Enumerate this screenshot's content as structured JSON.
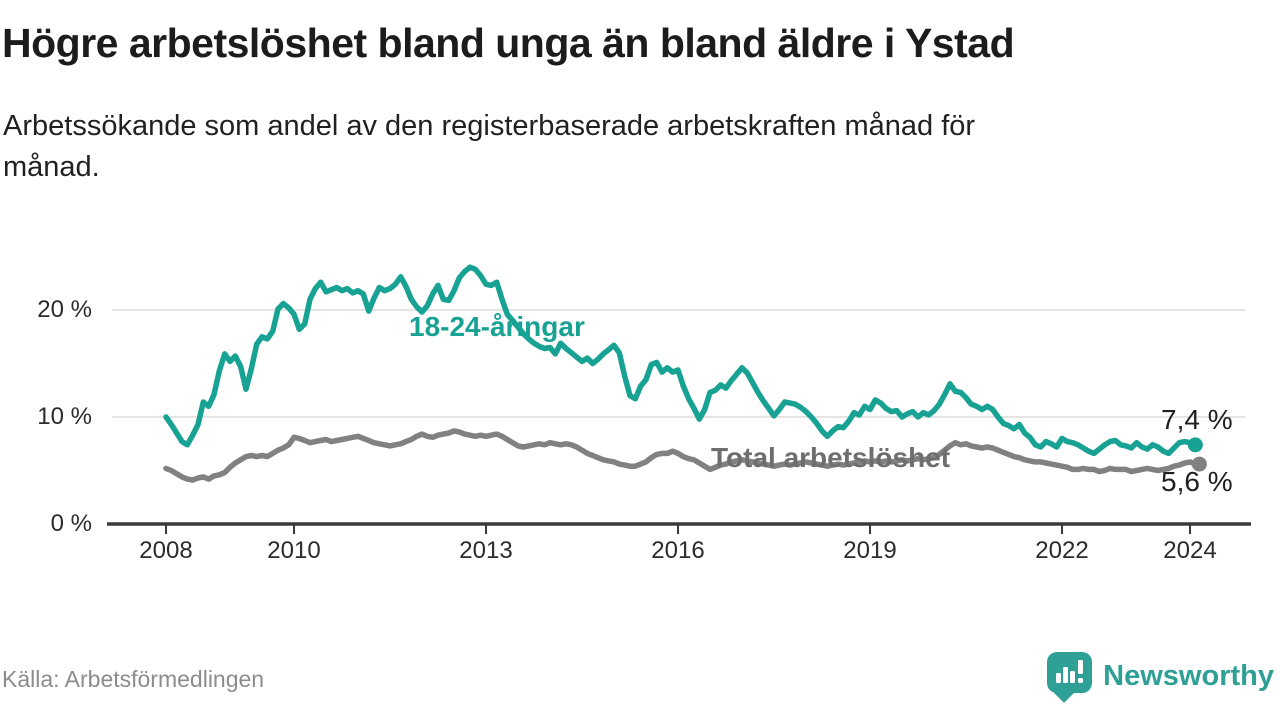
{
  "header": {
    "title": "Högre arbetslöshet bland unga än bland äldre i Ystad",
    "subtitle": "Arbetssökande som andel av den registerbaserade arbetskraften månad för\nmånad."
  },
  "footer": {
    "source": "Källa: Arbetsförmedlingen",
    "brand_name": "Newsworthy"
  },
  "colors": {
    "young_line": "#17a293",
    "total_line": "#818181",
    "total_label": "#6e6e6e",
    "grid": "#dcdcdc",
    "axis": "#3a3a3a",
    "text_dark": "#1f1f1f",
    "brand_teal": "#2fa096"
  },
  "chart_data": {
    "type": "line",
    "title": "Högre arbetslöshet bland unga än bland äldre i Ystad",
    "subtitle": "Arbetssökande som andel av den registerbaserade arbetskraften månad för månad.",
    "source": "Källa: Arbetsförmedlingen",
    "grid": "horizontal",
    "legend_position": "inline-labels",
    "x_axis": {
      "range": [
        2007.85,
        2024.6
      ],
      "ticks": [
        2008,
        2010,
        2013,
        2016,
        2019,
        2022,
        2024
      ],
      "tick_labels": [
        "2008",
        "2010",
        "2013",
        "2016",
        "2019",
        "2022",
        "2024"
      ]
    },
    "y_axis": {
      "unit": "%",
      "range": [
        0,
        25.5
      ],
      "ticks": [
        0,
        10,
        20
      ],
      "tick_labels": [
        "0 %",
        "10 %",
        "20 %"
      ]
    },
    "x_start_year": 2008.0,
    "x_step_months": 1,
    "series": [
      {
        "name": "18-24-åringar",
        "color": "#17a293",
        "end_value": 7.4,
        "end_label": "7,4 %",
        "values": [
          10.0,
          9.3,
          8.5,
          7.7,
          7.4,
          8.3,
          9.3,
          11.4,
          11.0,
          12.1,
          14.3,
          15.9,
          15.2,
          15.7,
          14.7,
          12.6,
          14.5,
          16.8,
          17.5,
          17.3,
          18.0,
          20.1,
          20.6,
          20.2,
          19.6,
          18.2,
          18.7,
          21.0,
          22.0,
          22.6,
          21.7,
          21.9,
          22.1,
          21.8,
          22.0,
          21.6,
          21.8,
          21.5,
          19.9,
          21.1,
          22.1,
          21.8,
          22.0,
          22.4,
          23.1,
          22.2,
          21.0,
          20.3,
          19.8,
          20.4,
          21.5,
          22.3,
          21.0,
          20.9,
          21.8,
          23.0,
          23.6,
          24.0,
          23.8,
          23.2,
          22.4,
          22.3,
          22.6,
          21.0,
          19.6,
          19.0,
          18.4,
          17.8,
          17.3,
          16.9,
          16.6,
          16.4,
          16.5,
          15.9,
          16.9,
          16.4,
          16.0,
          15.6,
          15.2,
          15.5,
          15.0,
          15.4,
          15.9,
          16.3,
          16.7,
          16.0,
          13.8,
          12.0,
          11.7,
          12.9,
          13.5,
          14.9,
          15.1,
          14.2,
          14.6,
          14.2,
          14.4,
          12.9,
          11.7,
          10.8,
          9.8,
          10.7,
          12.3,
          12.5,
          13.0,
          12.7,
          13.4,
          14.0,
          14.6,
          14.1,
          13.2,
          12.3,
          11.5,
          10.8,
          10.1,
          10.7,
          11.4,
          11.3,
          11.2,
          10.9,
          10.5,
          10.0,
          9.4,
          8.7,
          8.2,
          8.7,
          9.1,
          9.0,
          9.6,
          10.4,
          10.2,
          11.0,
          10.7,
          11.6,
          11.3,
          10.8,
          10.5,
          10.6,
          10.0,
          10.3,
          10.5,
          10.0,
          10.4,
          10.2,
          10.6,
          11.2,
          12.1,
          13.1,
          12.4,
          12.3,
          11.8,
          11.2,
          11.0,
          10.7,
          11.0,
          10.7,
          10.0,
          9.4,
          9.2,
          8.9,
          9.3,
          8.5,
          8.1,
          7.4,
          7.2,
          7.7,
          7.5,
          7.2,
          8.0,
          7.7,
          7.6,
          7.4,
          7.1,
          6.8,
          6.6,
          7.0,
          7.4,
          7.7,
          7.8,
          7.4,
          7.3,
          7.1,
          7.6,
          7.2,
          7.0,
          7.4,
          7.2,
          6.8,
          6.6,
          7.1,
          7.6,
          7.7,
          7.6,
          7.4
        ]
      },
      {
        "name": "Total arbetslöshet",
        "color": "#818181",
        "end_value": 5.6,
        "end_label": "5,6 %",
        "values": [
          5.2,
          5.0,
          4.7,
          4.4,
          4.2,
          4.1,
          4.3,
          4.4,
          4.2,
          4.5,
          4.6,
          4.8,
          5.3,
          5.7,
          6.0,
          6.3,
          6.4,
          6.3,
          6.4,
          6.3,
          6.6,
          6.9,
          7.1,
          7.4,
          8.1,
          8.0,
          7.8,
          7.6,
          7.7,
          7.8,
          7.9,
          7.7,
          7.8,
          7.9,
          8.0,
          8.1,
          8.2,
          8.0,
          7.8,
          7.6,
          7.5,
          7.4,
          7.3,
          7.4,
          7.5,
          7.7,
          7.9,
          8.2,
          8.4,
          8.2,
          8.1,
          8.3,
          8.4,
          8.5,
          8.7,
          8.6,
          8.4,
          8.3,
          8.2,
          8.3,
          8.2,
          8.3,
          8.4,
          8.2,
          7.9,
          7.6,
          7.3,
          7.2,
          7.3,
          7.4,
          7.5,
          7.4,
          7.6,
          7.5,
          7.4,
          7.5,
          7.4,
          7.2,
          6.9,
          6.6,
          6.4,
          6.2,
          6.0,
          5.9,
          5.8,
          5.6,
          5.5,
          5.4,
          5.4,
          5.6,
          5.8,
          6.2,
          6.5,
          6.6,
          6.6,
          6.8,
          6.6,
          6.3,
          6.1,
          6.0,
          5.7,
          5.4,
          5.1,
          5.3,
          5.5,
          5.6,
          5.8,
          5.9,
          6.0,
          5.9,
          5.8,
          5.7,
          5.6,
          5.5,
          5.4,
          5.5,
          5.6,
          5.5,
          5.6,
          5.7,
          5.8,
          5.7,
          5.6,
          5.5,
          5.4,
          5.5,
          5.6,
          5.5,
          5.6,
          5.7,
          5.8,
          5.9,
          5.8,
          5.9,
          5.8,
          5.9,
          5.8,
          5.9,
          6.0,
          5.9,
          6.0,
          6.1,
          6.0,
          6.1,
          6.2,
          6.5,
          6.9,
          7.3,
          7.6,
          7.4,
          7.5,
          7.3,
          7.2,
          7.1,
          7.2,
          7.1,
          6.9,
          6.7,
          6.5,
          6.3,
          6.2,
          6.0,
          5.9,
          5.8,
          5.8,
          5.7,
          5.6,
          5.5,
          5.4,
          5.3,
          5.1,
          5.1,
          5.2,
          5.1,
          5.1,
          4.9,
          5.0,
          5.2,
          5.1,
          5.1,
          5.1,
          4.9,
          5.0,
          5.1,
          5.2,
          5.1,
          5.0,
          5.1,
          5.2,
          5.4,
          5.5,
          5.7,
          5.8,
          5.6
        ]
      }
    ]
  }
}
